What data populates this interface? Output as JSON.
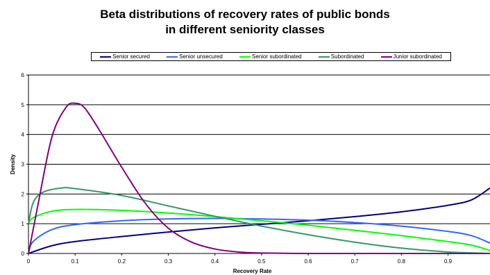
{
  "chart_data": {
    "type": "line",
    "title_lines": [
      "Beta distributions of recovery rates of public bonds",
      "in different seniority classes"
    ],
    "xlabel": "Recovery Rate",
    "ylabel": "Density",
    "xlim": [
      0,
      0.99
    ],
    "ylim": [
      0,
      6
    ],
    "x_ticks": [
      "0",
      "0.1",
      "0.2",
      "0.3",
      "0.4",
      "0.5",
      "0.6",
      "0.7",
      "0.8",
      "0.9"
    ],
    "y_ticks": [
      "0",
      "1",
      "2",
      "3",
      "4",
      "5",
      "6"
    ],
    "grid": "horizontal",
    "legend_position": "top",
    "series": [
      {
        "name": "Senior secured",
        "color": "#000080",
        "x": [
          0,
          0.05,
          0.1,
          0.2,
          0.3,
          0.4,
          0.5,
          0.6,
          0.7,
          0.8,
          0.9,
          0.95,
          0.99
        ],
        "y": [
          0,
          0.26,
          0.4,
          0.57,
          0.72,
          0.86,
          0.98,
          1.1,
          1.24,
          1.4,
          1.62,
          1.8,
          2.2
        ]
      },
      {
        "name": "Senior unsecured",
        "color": "#3366FF",
        "x": [
          0,
          0.01,
          0.05,
          0.1,
          0.2,
          0.3,
          0.4,
          0.5,
          0.6,
          0.7,
          0.8,
          0.9,
          0.95,
          0.99
        ],
        "y": [
          0,
          0.4,
          0.8,
          0.97,
          1.1,
          1.16,
          1.18,
          1.16,
          1.12,
          1.04,
          0.92,
          0.74,
          0.6,
          0.35
        ]
      },
      {
        "name": "Senior subordinated",
        "color": "#00FF00",
        "x": [
          0,
          0.01,
          0.05,
          0.1,
          0.2,
          0.3,
          0.4,
          0.5,
          0.6,
          0.7,
          0.8,
          0.9,
          0.95,
          0.99
        ],
        "y": [
          1.0,
          1.2,
          1.42,
          1.48,
          1.45,
          1.36,
          1.24,
          1.1,
          0.95,
          0.78,
          0.6,
          0.4,
          0.28,
          0.1
        ]
      },
      {
        "name": "Subordinated",
        "color": "#339966",
        "x": [
          0,
          0.01,
          0.03,
          0.07,
          0.1,
          0.2,
          0.3,
          0.4,
          0.5,
          0.6,
          0.7,
          0.8,
          0.9,
          0.95,
          0.99
        ],
        "y": [
          1.0,
          1.7,
          2.05,
          2.2,
          2.18,
          1.95,
          1.6,
          1.25,
          0.92,
          0.63,
          0.38,
          0.18,
          0.05,
          0.02,
          0.0
        ]
      },
      {
        "name": "Junior subordinated",
        "color": "#800080",
        "x": [
          0,
          0.02,
          0.05,
          0.08,
          0.1,
          0.12,
          0.15,
          0.2,
          0.25,
          0.3,
          0.35,
          0.4,
          0.45,
          0.5,
          0.6,
          0.7,
          0.8,
          0.9,
          0.99
        ],
        "y": [
          0,
          1.6,
          3.9,
          4.9,
          5.05,
          4.9,
          4.2,
          2.9,
          1.7,
          0.85,
          0.38,
          0.15,
          0.05,
          0.015,
          0,
          0,
          0,
          0,
          0
        ]
      }
    ]
  }
}
